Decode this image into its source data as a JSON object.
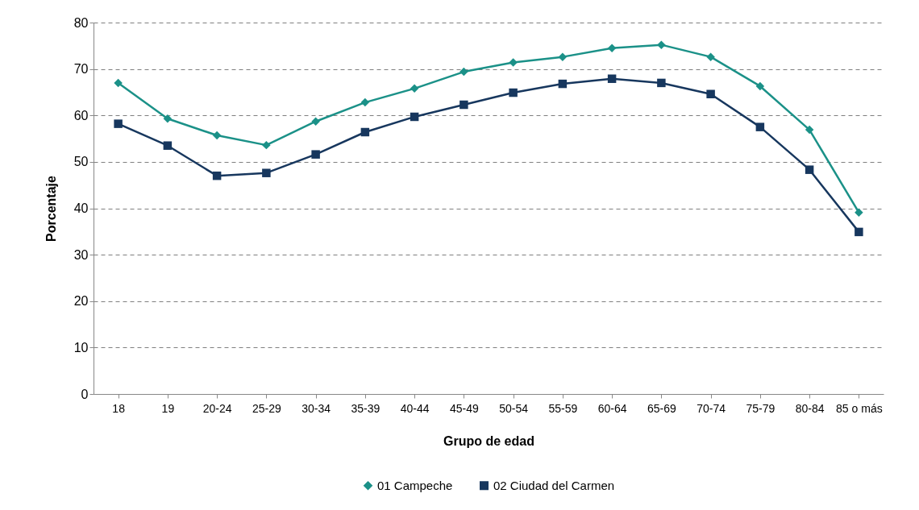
{
  "chart_data": {
    "type": "line",
    "xlabel": "Grupo de edad",
    "ylabel": "Porcentaje",
    "categories": [
      "18",
      "19",
      "20-24",
      "25-29",
      "30-34",
      "35-39",
      "40-44",
      "45-49",
      "50-54",
      "55-59",
      "60-64",
      "65-69",
      "70-74",
      "75-79",
      "80-84",
      "85 o más"
    ],
    "series": [
      {
        "name": "01 Campeche",
        "color": "#1b9188",
        "marker": "diamond",
        "values": [
          67.0,
          59.3,
          55.7,
          53.6,
          58.7,
          62.8,
          65.8,
          69.4,
          71.4,
          72.6,
          74.5,
          75.2,
          72.6,
          66.3,
          56.9,
          39.1
        ]
      },
      {
        "name": "02 Ciudad del Carmen",
        "color": "#17375e",
        "marker": "square",
        "values": [
          58.2,
          53.5,
          47.0,
          47.6,
          51.6,
          56.4,
          59.7,
          62.3,
          64.9,
          66.8,
          67.9,
          67.0,
          64.6,
          57.5,
          48.3,
          34.9
        ]
      }
    ],
    "ylim": [
      0,
      80
    ],
    "yticks": [
      0,
      10,
      20,
      30,
      40,
      50,
      60,
      70,
      80
    ],
    "grid": "y",
    "legend": "bottom",
    "line_style": "solid"
  }
}
